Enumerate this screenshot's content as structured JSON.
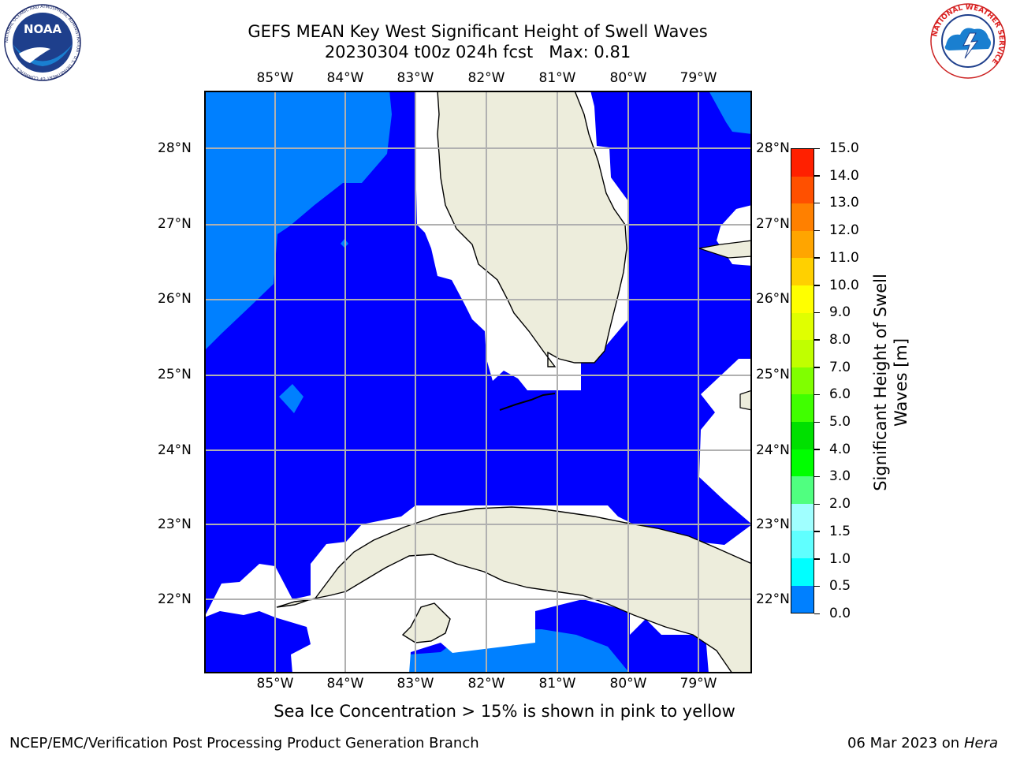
{
  "title": {
    "line1": "GEFS MEAN Key West Significant Height of Swell Waves",
    "line2": "20230304 t00z 024h fcst",
    "max": "Max: 0.81"
  },
  "logos": {
    "noaa_text": "NOAA",
    "noaa_ring": "NATIONAL OCEANIC AND ATMOSPHERIC ADMINISTRATION · U.S. DEPARTMENT OF COMMERCE",
    "nws_ring": "NATIONAL WEATHER SERVICE"
  },
  "map": {
    "lon_labels": [
      "85°W",
      "84°W",
      "83°W",
      "82°W",
      "81°W",
      "80°W",
      "79°W"
    ],
    "lat_labels": [
      "28°N",
      "27°N",
      "26°N",
      "25°N",
      "24°N",
      "23°N",
      "22°N"
    ],
    "colors": {
      "ocean_low": "#0000ff",
      "ocean_mid": "#0080ff",
      "land": "#ededdc",
      "grid": "#b0b0b0"
    }
  },
  "colorbar": {
    "label_line1": "Significant Height of Swell",
    "label_line2": "Waves [m]",
    "ticks": [
      "15.0",
      "14.0",
      "13.0",
      "12.0",
      "11.0",
      "10.0",
      "9.0",
      "8.0",
      "7.0",
      "6.0",
      "5.0",
      "4.0",
      "3.0",
      "2.0",
      "1.5",
      "1.0",
      "0.5",
      "0.0"
    ],
    "colors": [
      "#ff0000",
      "#ff2000",
      "#ff5000",
      "#ff8000",
      "#ffa500",
      "#ffd000",
      "#ffff00",
      "#e0ff00",
      "#c0ff00",
      "#80ff00",
      "#40ff00",
      "#00e000",
      "#00ff00",
      "#50ff80",
      "#a0ffff",
      "#60ffff",
      "#00ffff",
      "#0080ff",
      "#0000ff"
    ]
  },
  "note": "Sea Ice Concentration > 15% is shown in pink to yellow",
  "footer": {
    "left": "NCEP/EMC/Verification Post Processing Product Generation Branch",
    "date": "06 Mar 2023 on",
    "host": "Hera"
  }
}
